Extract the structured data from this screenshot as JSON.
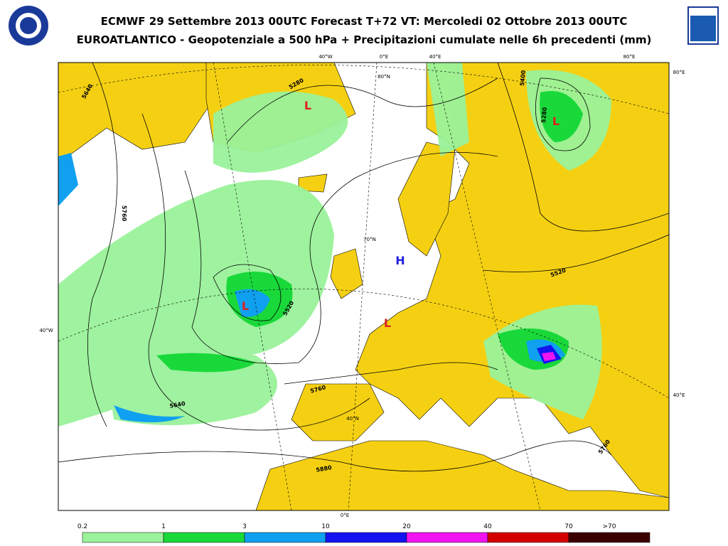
{
  "header": {
    "title": "ECMWF 29 Settembre 2013 00UTC Forecast T+72 VT: Mercoledi 02 Ottobre 2013 00UTC",
    "subtitle": "EUROATLANTICO - Geopotenziale a 500 hPa + Precipitazioni cumulate nelle 6h precedenti (mm)"
  },
  "map": {
    "graticule_labels": [
      "40°W",
      "0°E",
      "40°E",
      "80°E",
      "80°E",
      "40°E",
      "40°W",
      "0°E",
      "80°N",
      "70°N",
      "40°N"
    ],
    "contour_labels": [
      "5280",
      "5400",
      "5280",
      "5640",
      "5760",
      "5520",
      "5880",
      "5760",
      "5520",
      "5760",
      "5640"
    ],
    "pressure_centers": [
      {
        "label": "L",
        "color": "#e02020"
      },
      {
        "label": "L",
        "color": "#e02020"
      },
      {
        "label": "L",
        "color": "#e02020"
      },
      {
        "label": "L",
        "color": "#e02020"
      },
      {
        "label": "H",
        "color": "#2020e0"
      }
    ]
  },
  "legend": {
    "labels": [
      "0.2",
      "1",
      "3",
      "10",
      "20",
      "40",
      "70",
      ">70"
    ],
    "colors": [
      "#9af29a",
      "#19d93a",
      "#10a0f0",
      "#1414f0",
      "#f014f0",
      "#d40000",
      "#3a0000"
    ]
  }
}
